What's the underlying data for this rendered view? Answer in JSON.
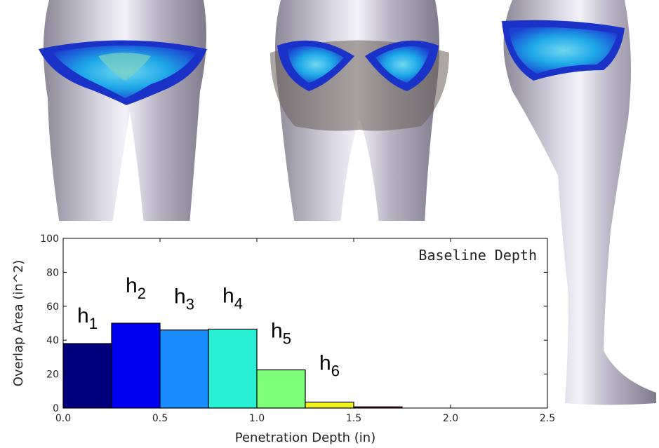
{
  "chart_data": {
    "type": "histogram",
    "legend_text": "Baseline Depth",
    "x_label": "Penetration Depth (in)",
    "y_label": "Overlap Area (in^2)",
    "bins": [
      0,
      0.25,
      0.5,
      0.75,
      1.0,
      1.25,
      1.5,
      1.75
    ],
    "counts": [
      38,
      50,
      46,
      46.5,
      22.5,
      3.5,
      0.7
    ],
    "colors": [
      "#00007f",
      "#0000f0",
      "#1a8cff",
      "#29f0d5",
      "#7dff7a",
      "#f0f020",
      "#7f0000"
    ],
    "annotations": [
      {
        "base": "h",
        "sub": "1"
      },
      {
        "base": "h",
        "sub": "2"
      },
      {
        "base": "h",
        "sub": "3"
      },
      {
        "base": "h",
        "sub": "4"
      },
      {
        "base": "h",
        "sub": "5"
      },
      {
        "base": "h",
        "sub": "6"
      }
    ],
    "xlim": [
      0,
      2.5
    ],
    "xticks": [
      {
        "value": 0,
        "label": "0.0"
      },
      {
        "value": 0.5,
        "label": "0.5"
      },
      {
        "value": 1,
        "label": "1.0"
      },
      {
        "value": 1.5,
        "label": "1.5"
      },
      {
        "value": 2,
        "label": "2.0"
      },
      {
        "value": 2.5,
        "label": "2.5"
      }
    ],
    "ylim": [
      0,
      100
    ],
    "yticks": [
      0,
      20,
      40,
      60,
      80,
      100
    ]
  }
}
